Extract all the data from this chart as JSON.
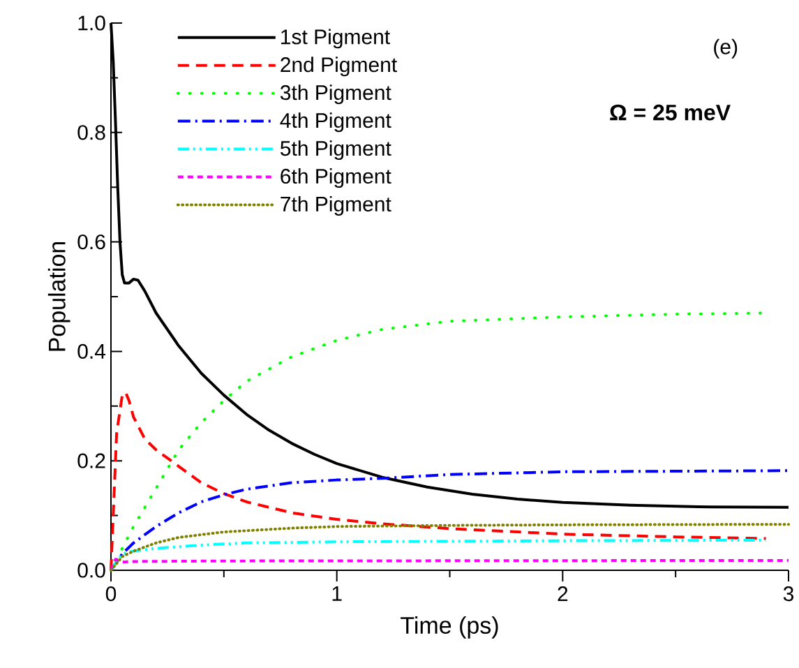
{
  "chart_data": {
    "type": "line",
    "xlabel": "Time (ps)",
    "ylabel": "Population",
    "xlim": [
      0,
      3
    ],
    "ylim": [
      0,
      1.0
    ],
    "xticks": [
      0,
      1,
      2,
      3
    ],
    "yticks": [
      {
        "value": 0,
        "label": "0.0"
      },
      0.2,
      0.4,
      0.6,
      0.8,
      {
        "value": 1,
        "label": "1.0"
      }
    ],
    "legend": "top left",
    "grid": false,
    "annotations": [
      "(e)",
      "Ω = 25 meV"
    ],
    "series": [
      {
        "name": "1st Pigment",
        "color": "#000000",
        "line_style": "solid",
        "x": [
          0,
          0.01,
          0.02,
          0.03,
          0.04,
          0.05,
          0.06,
          0.08,
          0.1,
          0.12,
          0.15,
          0.2,
          0.3,
          0.4,
          0.5,
          0.6,
          0.7,
          0.8,
          0.9,
          1.0,
          1.2,
          1.4,
          1.6,
          1.8,
          2.0,
          2.3,
          2.6,
          3.0
        ],
        "values": [
          1.0,
          0.93,
          0.82,
          0.7,
          0.6,
          0.54,
          0.525,
          0.525,
          0.532,
          0.53,
          0.51,
          0.47,
          0.41,
          0.36,
          0.32,
          0.285,
          0.256,
          0.232,
          0.212,
          0.195,
          0.17,
          0.152,
          0.139,
          0.13,
          0.124,
          0.119,
          0.116,
          0.115
        ]
      },
      {
        "name": "2nd Pigment",
        "color": "#ff0000",
        "line_style": "dashed",
        "x": [
          0,
          0.01,
          0.025,
          0.05,
          0.065,
          0.08,
          0.1,
          0.15,
          0.2,
          0.3,
          0.4,
          0.5,
          0.6,
          0.8,
          1.0,
          1.2,
          1.5,
          2.0,
          2.5,
          2.9
        ],
        "values": [
          0,
          0.1,
          0.25,
          0.32,
          0.325,
          0.31,
          0.28,
          0.24,
          0.22,
          0.19,
          0.16,
          0.14,
          0.125,
          0.105,
          0.093,
          0.085,
          0.076,
          0.066,
          0.061,
          0.058
        ]
      },
      {
        "name": "3th Pigment",
        "color": "#00ff00",
        "line_style": "dotted",
        "x": [
          0,
          0.05,
          0.1,
          0.2,
          0.3,
          0.4,
          0.5,
          0.6,
          0.8,
          1.0,
          1.2,
          1.5,
          2.0,
          2.5,
          2.9
        ],
        "values": [
          0,
          0.04,
          0.08,
          0.15,
          0.22,
          0.27,
          0.31,
          0.345,
          0.39,
          0.42,
          0.44,
          0.455,
          0.463,
          0.468,
          0.47
        ]
      },
      {
        "name": "4th Pigment",
        "color": "#0000ff",
        "line_style": "dashdot",
        "x": [
          0,
          0.05,
          0.1,
          0.2,
          0.3,
          0.4,
          0.5,
          0.6,
          0.8,
          1.0,
          1.2,
          1.5,
          2.0,
          3.0
        ],
        "values": [
          0,
          0.03,
          0.05,
          0.08,
          0.105,
          0.125,
          0.138,
          0.148,
          0.16,
          0.165,
          0.168,
          0.175,
          0.18,
          0.182
        ]
      },
      {
        "name": "5th Pigment",
        "color": "#00ffff",
        "line_style": "dashdotdot",
        "x": [
          0,
          0.05,
          0.1,
          0.2,
          0.4,
          0.6,
          1.0,
          2.0,
          2.9
        ],
        "values": [
          0,
          0.03,
          0.035,
          0.04,
          0.046,
          0.05,
          0.052,
          0.054,
          0.055
        ]
      },
      {
        "name": "6th Pigment",
        "color": "#ff00ff",
        "line_style": "shortdash",
        "x": [
          0,
          0.02,
          0.05,
          0.1,
          0.5,
          3.0
        ],
        "values": [
          0,
          0.02,
          0.015,
          0.016,
          0.017,
          0.018
        ]
      },
      {
        "name": "7th Pigment",
        "color": "#808000",
        "line_style": "densedotted",
        "x": [
          0,
          0.05,
          0.1,
          0.2,
          0.3,
          0.5,
          0.8,
          1.0,
          1.5,
          2.0,
          3.0
        ],
        "values": [
          0,
          0.025,
          0.035,
          0.05,
          0.06,
          0.07,
          0.077,
          0.08,
          0.082,
          0.083,
          0.084
        ]
      }
    ]
  }
}
